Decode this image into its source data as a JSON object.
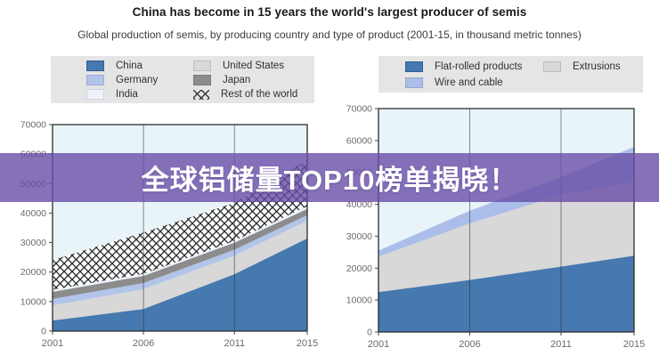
{
  "header": {
    "title": "China has become in 15 years the world's largest producer of semis",
    "subtitle": "Global production of semis, by producing country and type of product (2001-15, in thousand metric tonnes)"
  },
  "banner": {
    "text": "全球铝储量TOP10榜单揭晓！",
    "bg_color": "#694FA8",
    "text_color": "#ffffff",
    "opacity": 0.8
  },
  "chart_data": [
    {
      "id": "left",
      "type": "area",
      "stacked": true,
      "x": [
        2001,
        2006,
        2011,
        2015
      ],
      "x_tick_labels": [
        "2001",
        "2006",
        "2011",
        "2015"
      ],
      "y_ticks": [
        0,
        10000,
        20000,
        30000,
        40000,
        50000,
        60000,
        70000
      ],
      "y_tick_labels": [
        "0",
        "10000",
        "20000",
        "30000",
        "40000",
        "50000",
        "60000",
        "70000"
      ],
      "ylim": [
        0,
        70000
      ],
      "grid_x": [
        2006,
        2011
      ],
      "plot_bg": "#e9f4f8",
      "border_color": "#2b2b2b",
      "legend_position": "top",
      "series": [
        {
          "name": "China",
          "color": "#4679af",
          "values": [
            3600,
            7500,
            19300,
            31400
          ]
        },
        {
          "name": "United States",
          "color": "#d8d8d8",
          "values": [
            5100,
            6700,
            6300,
            6000
          ]
        },
        {
          "name": "Germany",
          "color": "#b2c4e9",
          "values": [
            2200,
            2100,
            2000,
            1900
          ]
        },
        {
          "name": "Japan",
          "color": "#8c8c8c",
          "values": [
            2400,
            2400,
            2400,
            2100
          ]
        },
        {
          "name": "India",
          "color": "#eef2fb",
          "values": [
            700,
            700,
            600,
            900
          ]
        },
        {
          "name": "Rest of the world",
          "color": "#fbfdfe",
          "hatch": true,
          "values": [
            10100,
            14000,
            12900,
            15700
          ]
        }
      ],
      "legend_columns": [
        [
          "China",
          "Germany",
          "India"
        ],
        [
          "United States",
          "Japan",
          "Rest of the world"
        ]
      ]
    },
    {
      "id": "right",
      "type": "area",
      "stacked": true,
      "x": [
        2001,
        2006,
        2011,
        2015
      ],
      "x_tick_labels": [
        "2001",
        "2006",
        "2011",
        "2015"
      ],
      "y_ticks": [
        0,
        10000,
        20000,
        30000,
        40000,
        50000,
        60000,
        70000
      ],
      "y_tick_labels": [
        "0",
        "10000",
        "20000",
        "30000",
        "40000",
        "50000",
        "60000",
        "70000"
      ],
      "ylim": [
        0,
        70000
      ],
      "grid_x": [
        2006,
        2011
      ],
      "plot_bg": "#e9f4f8",
      "border_color": "#2b2b2b",
      "legend_position": "top",
      "series": [
        {
          "name": "Flat-rolled products",
          "color": "#4679af",
          "values": [
            12500,
            16300,
            20500,
            23900
          ]
        },
        {
          "name": "Extrusions",
          "color": "#d8d8d8",
          "values": [
            11100,
            17700,
            22500,
            23100
          ]
        },
        {
          "name": "Wire and cable",
          "color": "#abbeea",
          "values": [
            1900,
            4000,
            5500,
            11000
          ]
        }
      ],
      "legend_columns": [
        [
          "Flat-rolled products",
          "Wire and cable"
        ],
        [
          "Extrusions"
        ]
      ]
    }
  ]
}
